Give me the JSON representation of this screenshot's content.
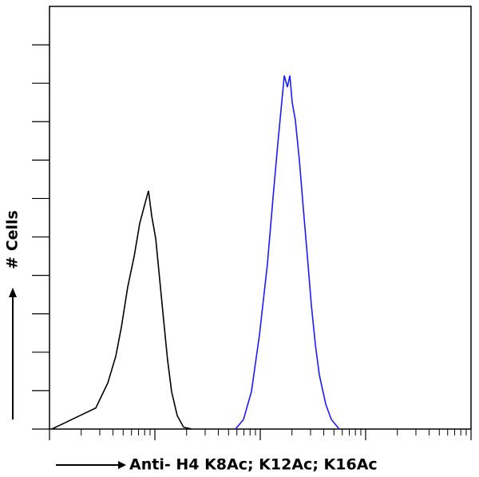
{
  "chart_data": {
    "type": "line",
    "xlabel": "Anti- H4 K8Ac; K12Ac; K16Ac",
    "ylabel": "# Cells",
    "xscale": "log",
    "xlim": [
      1,
      10000
    ],
    "xticks": [
      1,
      10,
      100,
      1000,
      10000
    ],
    "ylim": [
      0,
      11
    ],
    "yticks": [
      0,
      1,
      2,
      3,
      4,
      5,
      6,
      7,
      8,
      9,
      10
    ],
    "tick_labels": false,
    "series": [
      {
        "color": "#000000",
        "x": [
          1.05,
          1.37,
          1.94,
          2.75,
          3.57,
          4.26,
          4.81,
          5.53,
          6.36,
          7.18,
          8.11,
          8.7,
          9.33,
          10.2,
          11.1,
          12.1,
          13.2,
          14.4,
          16.3,
          18.7,
          22.3
        ],
        "values": [
          0,
          0.15,
          0.35,
          0.55,
          1.2,
          1.9,
          2.65,
          3.7,
          4.5,
          5.35,
          5.9,
          6.2,
          5.55,
          4.95,
          3.9,
          2.85,
          1.8,
          0.98,
          0.35,
          0.05,
          0
        ]
      },
      {
        "color": "#1a1aff",
        "x": [
          58.2,
          69.3,
          82.6,
          98.3,
          117,
          132,
          147,
          160,
          169,
          181,
          191,
          201,
          215,
          235,
          256,
          280,
          305,
          333,
          364,
          418,
          472,
          562
        ],
        "values": [
          0,
          0.25,
          0.98,
          2.45,
          4.3,
          6.0,
          7.45,
          8.5,
          9.2,
          8.9,
          9.2,
          8.5,
          8.05,
          7.0,
          5.75,
          4.5,
          3.25,
          2.2,
          1.4,
          0.65,
          0.25,
          0
        ]
      }
    ]
  }
}
